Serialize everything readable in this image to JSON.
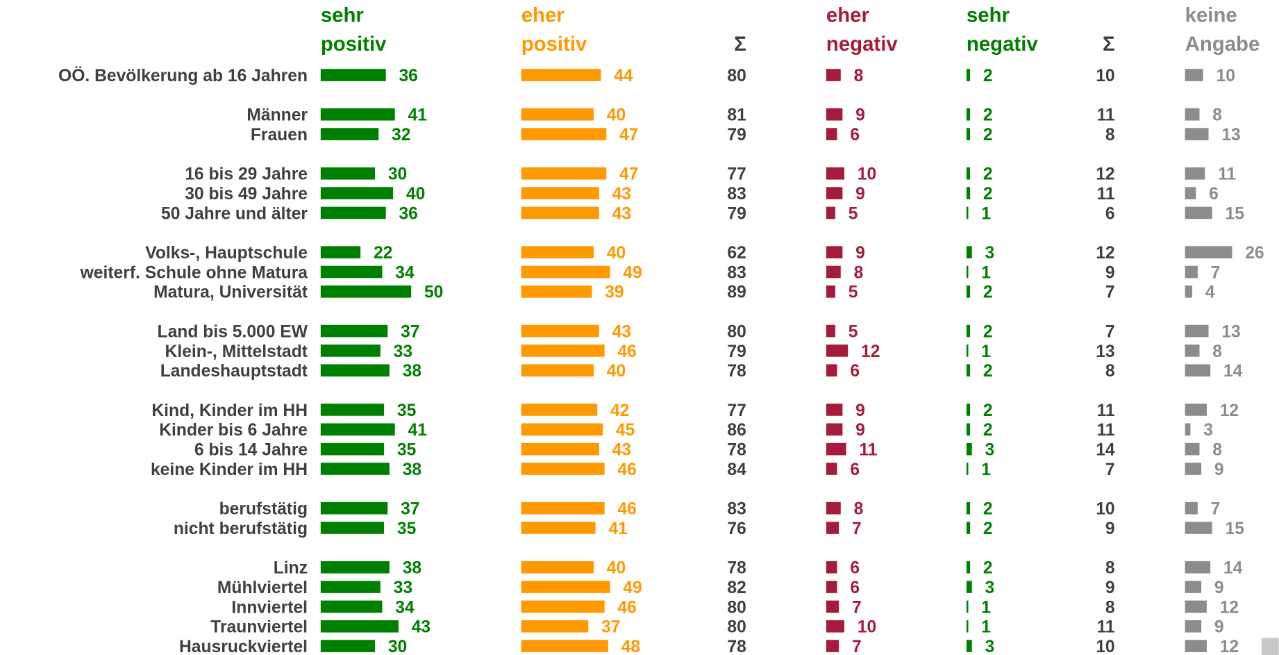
{
  "chart_data": {
    "type": "bar",
    "categories": [
      "OÖ. Bevölkerung ab 16 Jahren",
      null,
      "Männer",
      "Frauen",
      null,
      "16 bis 29 Jahre",
      "30 bis 49 Jahre",
      "50 Jahre und älter",
      null,
      "Volks-, Hauptschule",
      "weiterf. Schule ohne Matura",
      "Matura, Universität",
      null,
      "Land bis 5.000 EW",
      "Klein-, Mittelstadt",
      "Landeshauptstadt",
      null,
      "Kind, Kinder im HH",
      "Kinder bis 6 Jahre",
      "6 bis 14 Jahre",
      "keine Kinder im HH",
      null,
      "berufstätig",
      "nicht berufstätig",
      null,
      "Linz",
      "Mühlviertel",
      "Innviertel",
      "Traunviertel",
      "Hausruckviertel"
    ],
    "series": [
      {
        "name": "sehr positiv",
        "color": "#008000",
        "values": [
          36,
          null,
          41,
          32,
          null,
          30,
          40,
          36,
          null,
          22,
          34,
          50,
          null,
          37,
          33,
          38,
          null,
          35,
          41,
          35,
          38,
          null,
          37,
          35,
          null,
          38,
          33,
          34,
          43,
          30
        ]
      },
      {
        "name": "eher positiv",
        "color": "#ff9900",
        "values": [
          44,
          null,
          40,
          47,
          null,
          47,
          43,
          43,
          null,
          40,
          49,
          39,
          null,
          43,
          46,
          40,
          null,
          42,
          45,
          43,
          46,
          null,
          46,
          41,
          null,
          40,
          49,
          46,
          37,
          48
        ]
      },
      {
        "name": "eher negativ",
        "color": "#a51b3c",
        "values": [
          8,
          null,
          9,
          6,
          null,
          10,
          9,
          5,
          null,
          9,
          8,
          5,
          null,
          5,
          12,
          6,
          null,
          9,
          9,
          11,
          6,
          null,
          8,
          7,
          null,
          6,
          6,
          7,
          10,
          7
        ]
      },
      {
        "name": "sehr negativ",
        "color": "#008000",
        "values": [
          2,
          null,
          2,
          2,
          null,
          2,
          2,
          1,
          null,
          3,
          1,
          2,
          null,
          2,
          1,
          2,
          null,
          2,
          2,
          3,
          1,
          null,
          2,
          2,
          null,
          2,
          3,
          1,
          1,
          3
        ]
      },
      {
        "name": "keine Angabe",
        "color": "#8c8c8c",
        "values": [
          10,
          null,
          8,
          13,
          null,
          11,
          6,
          15,
          null,
          26,
          7,
          4,
          null,
          13,
          8,
          14,
          null,
          12,
          3,
          8,
          9,
          null,
          7,
          15,
          null,
          14,
          9,
          12,
          9,
          12
        ]
      }
    ],
    "totals": [
      {
        "name": "Σ",
        "color": "#404040",
        "values": [
          80,
          null,
          81,
          79,
          null,
          77,
          83,
          79,
          null,
          62,
          83,
          89,
          null,
          80,
          79,
          78,
          null,
          77,
          86,
          78,
          84,
          null,
          83,
          76,
          null,
          78,
          82,
          80,
          80,
          78
        ]
      },
      {
        "name": "Σ",
        "color": "#404040",
        "values": [
          10,
          null,
          11,
          8,
          null,
          12,
          11,
          6,
          null,
          12,
          9,
          7,
          null,
          7,
          13,
          8,
          null,
          11,
          11,
          14,
          7,
          null,
          10,
          9,
          null,
          8,
          9,
          8,
          11,
          10
        ]
      }
    ]
  }
}
